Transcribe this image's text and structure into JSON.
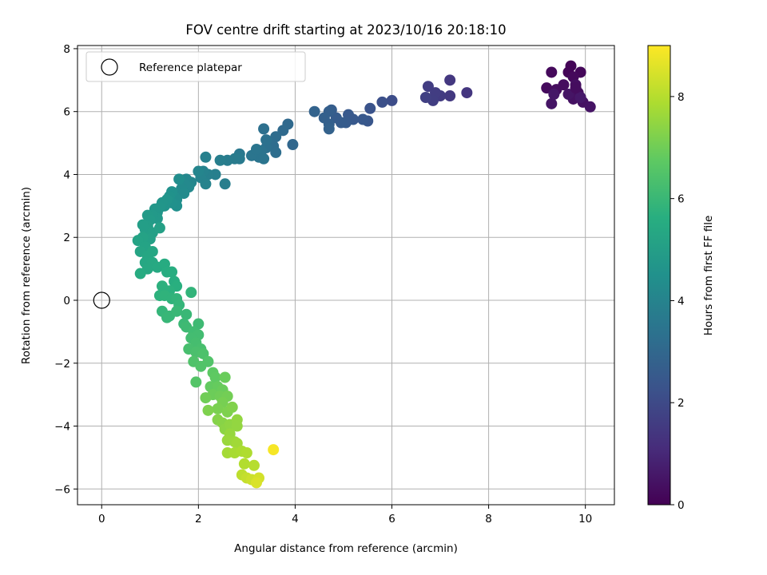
{
  "chart_data": {
    "type": "scatter",
    "title": "FOV centre drift starting at 2023/10/16 20:18:10",
    "xlabel": "Angular distance from reference (arcmin)",
    "ylabel": "Rotation from reference (arcmin)",
    "xlim": [
      -0.5,
      10.6
    ],
    "ylim": [
      -6.5,
      8.1
    ],
    "xticks": [
      "0",
      "2",
      "4",
      "6",
      "8",
      "10"
    ],
    "yticks": [
      "−6",
      "−4",
      "−2",
      "0",
      "2",
      "4",
      "6",
      "8"
    ],
    "grid": true,
    "legend": {
      "placement": "upper-left",
      "entries": [
        "Reference platepar"
      ]
    },
    "reference_point": {
      "x": 0,
      "y": 0
    },
    "colorbar": {
      "label": "Hours from first FF file",
      "range": [
        0,
        9.0
      ],
      "ticks": [
        "0",
        "2",
        "4",
        "6",
        "8"
      ],
      "colormap": "viridis"
    },
    "points": [
      {
        "x": 9.7,
        "y": 7.45,
        "t": 0.1
      },
      {
        "x": 9.65,
        "y": 7.25,
        "t": 0.1
      },
      {
        "x": 9.9,
        "y": 7.25,
        "t": 0.15
      },
      {
        "x": 9.75,
        "y": 7.1,
        "t": 0.2
      },
      {
        "x": 9.3,
        "y": 7.25,
        "t": 0.2
      },
      {
        "x": 9.2,
        "y": 6.75,
        "t": 0.25
      },
      {
        "x": 9.4,
        "y": 6.7,
        "t": 0.3
      },
      {
        "x": 9.55,
        "y": 6.85,
        "t": 0.3
      },
      {
        "x": 9.8,
        "y": 6.85,
        "t": 0.35
      },
      {
        "x": 9.85,
        "y": 6.6,
        "t": 0.35
      },
      {
        "x": 9.75,
        "y": 6.4,
        "t": 0.4
      },
      {
        "x": 9.95,
        "y": 6.3,
        "t": 0.4
      },
      {
        "x": 10.1,
        "y": 6.15,
        "t": 0.45
      },
      {
        "x": 9.3,
        "y": 6.25,
        "t": 0.5
      },
      {
        "x": 9.35,
        "y": 6.55,
        "t": 0.55
      },
      {
        "x": 9.65,
        "y": 6.55,
        "t": 0.5
      },
      {
        "x": 9.9,
        "y": 6.45,
        "t": 0.6
      },
      {
        "x": 9.8,
        "y": 6.75,
        "t": 0.3
      },
      {
        "x": 7.55,
        "y": 6.6,
        "t": 1.4
      },
      {
        "x": 7.2,
        "y": 7.0,
        "t": 1.45
      },
      {
        "x": 7.2,
        "y": 6.5,
        "t": 1.5
      },
      {
        "x": 7.0,
        "y": 6.5,
        "t": 1.55
      },
      {
        "x": 6.9,
        "y": 6.6,
        "t": 1.6
      },
      {
        "x": 6.75,
        "y": 6.8,
        "t": 1.6
      },
      {
        "x": 6.85,
        "y": 6.35,
        "t": 1.65
      },
      {
        "x": 6.7,
        "y": 6.45,
        "t": 1.7
      },
      {
        "x": 6.0,
        "y": 6.35,
        "t": 2.1
      },
      {
        "x": 5.8,
        "y": 6.3,
        "t": 2.2
      },
      {
        "x": 5.55,
        "y": 6.1,
        "t": 2.3
      },
      {
        "x": 5.5,
        "y": 5.7,
        "t": 2.4
      },
      {
        "x": 5.4,
        "y": 5.75,
        "t": 2.45
      },
      {
        "x": 5.2,
        "y": 5.75,
        "t": 2.5
      },
      {
        "x": 5.1,
        "y": 5.9,
        "t": 2.5
      },
      {
        "x": 5.05,
        "y": 5.65,
        "t": 2.55
      },
      {
        "x": 4.95,
        "y": 5.65,
        "t": 2.6
      },
      {
        "x": 4.85,
        "y": 5.8,
        "t": 2.6
      },
      {
        "x": 4.75,
        "y": 6.05,
        "t": 2.65
      },
      {
        "x": 4.7,
        "y": 6.0,
        "t": 2.7
      },
      {
        "x": 4.6,
        "y": 5.8,
        "t": 2.75
      },
      {
        "x": 4.7,
        "y": 5.6,
        "t": 2.75
      },
      {
        "x": 4.7,
        "y": 5.45,
        "t": 2.8
      },
      {
        "x": 4.4,
        "y": 6.0,
        "t": 2.85
      },
      {
        "x": 3.95,
        "y": 4.95,
        "t": 3.0
      },
      {
        "x": 3.85,
        "y": 5.6,
        "t": 3.05
      },
      {
        "x": 3.75,
        "y": 5.4,
        "t": 3.1
      },
      {
        "x": 3.6,
        "y": 5.2,
        "t": 3.15
      },
      {
        "x": 3.55,
        "y": 4.9,
        "t": 3.2
      },
      {
        "x": 3.5,
        "y": 5.0,
        "t": 3.2
      },
      {
        "x": 3.6,
        "y": 4.7,
        "t": 3.25
      },
      {
        "x": 3.4,
        "y": 4.85,
        "t": 3.3
      },
      {
        "x": 3.35,
        "y": 5.45,
        "t": 3.3
      },
      {
        "x": 3.4,
        "y": 5.1,
        "t": 3.35
      },
      {
        "x": 3.3,
        "y": 4.75,
        "t": 3.4
      },
      {
        "x": 3.25,
        "y": 4.55,
        "t": 3.45
      },
      {
        "x": 3.35,
        "y": 4.5,
        "t": 3.45
      },
      {
        "x": 3.1,
        "y": 4.6,
        "t": 3.5
      },
      {
        "x": 3.2,
        "y": 4.8,
        "t": 3.5
      },
      {
        "x": 2.85,
        "y": 4.65,
        "t": 3.6
      },
      {
        "x": 2.85,
        "y": 4.5,
        "t": 3.65
      },
      {
        "x": 2.75,
        "y": 4.5,
        "t": 3.7
      },
      {
        "x": 2.6,
        "y": 4.45,
        "t": 3.75
      },
      {
        "x": 2.55,
        "y": 3.7,
        "t": 3.8
      },
      {
        "x": 2.45,
        "y": 4.45,
        "t": 3.8
      },
      {
        "x": 2.35,
        "y": 4.0,
        "t": 3.85
      },
      {
        "x": 2.2,
        "y": 4.0,
        "t": 3.9
      },
      {
        "x": 2.15,
        "y": 4.55,
        "t": 3.9
      },
      {
        "x": 2.1,
        "y": 4.1,
        "t": 3.95
      },
      {
        "x": 2.05,
        "y": 3.9,
        "t": 4.0
      },
      {
        "x": 2.15,
        "y": 3.7,
        "t": 4.0
      },
      {
        "x": 2.0,
        "y": 4.1,
        "t": 4.05
      },
      {
        "x": 1.85,
        "y": 3.75,
        "t": 4.1
      },
      {
        "x": 1.75,
        "y": 3.85,
        "t": 4.15
      },
      {
        "x": 1.8,
        "y": 3.6,
        "t": 4.2
      },
      {
        "x": 1.7,
        "y": 3.7,
        "t": 4.2
      },
      {
        "x": 1.65,
        "y": 3.55,
        "t": 4.25
      },
      {
        "x": 1.6,
        "y": 3.4,
        "t": 4.3
      },
      {
        "x": 1.7,
        "y": 3.4,
        "t": 4.3
      },
      {
        "x": 1.6,
        "y": 3.85,
        "t": 4.35
      },
      {
        "x": 1.55,
        "y": 3.2,
        "t": 4.4
      },
      {
        "x": 1.5,
        "y": 3.3,
        "t": 4.4
      },
      {
        "x": 1.55,
        "y": 3.0,
        "t": 4.45
      },
      {
        "x": 1.45,
        "y": 3.45,
        "t": 4.5
      },
      {
        "x": 1.45,
        "y": 3.1,
        "t": 4.5
      },
      {
        "x": 1.4,
        "y": 3.3,
        "t": 4.55
      },
      {
        "x": 1.35,
        "y": 3.2,
        "t": 4.6
      },
      {
        "x": 1.3,
        "y": 3.0,
        "t": 4.6
      },
      {
        "x": 1.25,
        "y": 3.1,
        "t": 4.65
      },
      {
        "x": 1.2,
        "y": 2.95,
        "t": 4.7
      },
      {
        "x": 1.15,
        "y": 2.8,
        "t": 4.7
      },
      {
        "x": 1.1,
        "y": 2.9,
        "t": 4.75
      },
      {
        "x": 1.15,
        "y": 2.6,
        "t": 4.8
      },
      {
        "x": 1.05,
        "y": 2.7,
        "t": 4.8
      },
      {
        "x": 0.95,
        "y": 2.7,
        "t": 4.85
      },
      {
        "x": 1.0,
        "y": 2.55,
        "t": 4.9
      },
      {
        "x": 0.95,
        "y": 2.35,
        "t": 4.95
      },
      {
        "x": 0.9,
        "y": 2.25,
        "t": 5.0
      },
      {
        "x": 0.85,
        "y": 2.4,
        "t": 5.0
      },
      {
        "x": 1.05,
        "y": 2.15,
        "t": 5.05
      },
      {
        "x": 1.2,
        "y": 2.3,
        "t": 5.1
      },
      {
        "x": 1.0,
        "y": 1.95,
        "t": 5.1
      },
      {
        "x": 0.85,
        "y": 2.0,
        "t": 5.15
      },
      {
        "x": 0.75,
        "y": 1.9,
        "t": 5.2
      },
      {
        "x": 0.9,
        "y": 1.7,
        "t": 5.2
      },
      {
        "x": 0.8,
        "y": 1.55,
        "t": 5.25
      },
      {
        "x": 0.95,
        "y": 1.4,
        "t": 5.3
      },
      {
        "x": 1.05,
        "y": 1.55,
        "t": 5.3
      },
      {
        "x": 0.9,
        "y": 1.2,
        "t": 5.35
      },
      {
        "x": 1.05,
        "y": 1.2,
        "t": 5.4
      },
      {
        "x": 0.95,
        "y": 1.0,
        "t": 5.4
      },
      {
        "x": 1.15,
        "y": 1.05,
        "t": 5.45
      },
      {
        "x": 0.8,
        "y": 0.85,
        "t": 5.5
      },
      {
        "x": 1.3,
        "y": 1.15,
        "t": 5.5
      },
      {
        "x": 1.35,
        "y": 0.9,
        "t": 5.55
      },
      {
        "x": 1.45,
        "y": 0.9,
        "t": 5.6
      },
      {
        "x": 1.5,
        "y": 0.6,
        "t": 5.6
      },
      {
        "x": 1.55,
        "y": 0.45,
        "t": 5.65
      },
      {
        "x": 1.25,
        "y": 0.45,
        "t": 5.7
      },
      {
        "x": 1.4,
        "y": 0.3,
        "t": 5.7
      },
      {
        "x": 1.2,
        "y": 0.15,
        "t": 5.75
      },
      {
        "x": 1.3,
        "y": 0.15,
        "t": 5.8
      },
      {
        "x": 1.45,
        "y": 0.05,
        "t": 5.8
      },
      {
        "x": 1.55,
        "y": 0.05,
        "t": 5.85
      },
      {
        "x": 1.85,
        "y": 0.25,
        "t": 5.85
      },
      {
        "x": 1.6,
        "y": -0.15,
        "t": 5.9
      },
      {
        "x": 1.25,
        "y": -0.35,
        "t": 5.9
      },
      {
        "x": 1.4,
        "y": -0.5,
        "t": 5.95
      },
      {
        "x": 1.35,
        "y": -0.55,
        "t": 5.95
      },
      {
        "x": 1.55,
        "y": -0.35,
        "t": 6.0
      },
      {
        "x": 1.75,
        "y": -0.45,
        "t": 6.0
      },
      {
        "x": 1.7,
        "y": -0.75,
        "t": 6.05
      },
      {
        "x": 1.75,
        "y": -0.85,
        "t": 6.1
      },
      {
        "x": 2.0,
        "y": -0.75,
        "t": 6.1
      },
      {
        "x": 1.9,
        "y": -1.0,
        "t": 6.15
      },
      {
        "x": 2.0,
        "y": -1.1,
        "t": 6.2
      },
      {
        "x": 1.85,
        "y": -1.2,
        "t": 6.2
      },
      {
        "x": 1.95,
        "y": -1.35,
        "t": 6.25
      },
      {
        "x": 1.8,
        "y": -1.55,
        "t": 6.3
      },
      {
        "x": 2.05,
        "y": -1.55,
        "t": 6.3
      },
      {
        "x": 1.95,
        "y": -1.65,
        "t": 6.35
      },
      {
        "x": 2.1,
        "y": -1.7,
        "t": 6.4
      },
      {
        "x": 1.9,
        "y": -1.95,
        "t": 6.45
      },
      {
        "x": 2.2,
        "y": -1.95,
        "t": 6.5
      },
      {
        "x": 2.05,
        "y": -2.1,
        "t": 6.5
      },
      {
        "x": 1.95,
        "y": -2.6,
        "t": 6.55
      },
      {
        "x": 2.3,
        "y": -2.3,
        "t": 6.7
      },
      {
        "x": 2.35,
        "y": -2.45,
        "t": 6.75
      },
      {
        "x": 2.25,
        "y": -2.75,
        "t": 6.8
      },
      {
        "x": 2.4,
        "y": -2.75,
        "t": 6.85
      },
      {
        "x": 2.55,
        "y": -2.45,
        "t": 6.9
      },
      {
        "x": 2.5,
        "y": -2.85,
        "t": 6.9
      },
      {
        "x": 2.3,
        "y": -3.0,
        "t": 6.95
      },
      {
        "x": 2.15,
        "y": -3.1,
        "t": 7.0
      },
      {
        "x": 2.45,
        "y": -3.05,
        "t": 7.0
      },
      {
        "x": 2.6,
        "y": -3.05,
        "t": 7.05
      },
      {
        "x": 2.5,
        "y": -3.25,
        "t": 7.1
      },
      {
        "x": 2.4,
        "y": -3.45,
        "t": 7.15
      },
      {
        "x": 2.2,
        "y": -3.5,
        "t": 7.2
      },
      {
        "x": 2.6,
        "y": -3.55,
        "t": 7.2
      },
      {
        "x": 2.7,
        "y": -3.4,
        "t": 7.25
      },
      {
        "x": 2.4,
        "y": -3.8,
        "t": 7.3
      },
      {
        "x": 2.5,
        "y": -3.9,
        "t": 7.35
      },
      {
        "x": 2.55,
        "y": -4.1,
        "t": 7.4
      },
      {
        "x": 2.65,
        "y": -3.95,
        "t": 7.45
      },
      {
        "x": 2.8,
        "y": -3.8,
        "t": 7.5
      },
      {
        "x": 2.8,
        "y": -4.0,
        "t": 7.5
      },
      {
        "x": 2.65,
        "y": -4.25,
        "t": 7.55
      },
      {
        "x": 2.6,
        "y": -4.45,
        "t": 7.6
      },
      {
        "x": 2.75,
        "y": -4.5,
        "t": 7.65
      },
      {
        "x": 2.8,
        "y": -4.55,
        "t": 7.7
      },
      {
        "x": 2.6,
        "y": -4.85,
        "t": 7.75
      },
      {
        "x": 2.75,
        "y": -4.85,
        "t": 7.8
      },
      {
        "x": 2.9,
        "y": -4.8,
        "t": 7.85
      },
      {
        "x": 3.0,
        "y": -4.85,
        "t": 7.9
      },
      {
        "x": 2.95,
        "y": -5.2,
        "t": 7.95
      },
      {
        "x": 3.15,
        "y": -5.25,
        "t": 8.0
      },
      {
        "x": 2.9,
        "y": -5.55,
        "t": 8.1
      },
      {
        "x": 3.0,
        "y": -5.65,
        "t": 8.2
      },
      {
        "x": 3.1,
        "y": -5.7,
        "t": 8.3
      },
      {
        "x": 3.25,
        "y": -5.65,
        "t": 8.4
      },
      {
        "x": 3.2,
        "y": -5.8,
        "t": 8.5
      },
      {
        "x": 3.55,
        "y": -4.75,
        "t": 8.9
      }
    ]
  }
}
